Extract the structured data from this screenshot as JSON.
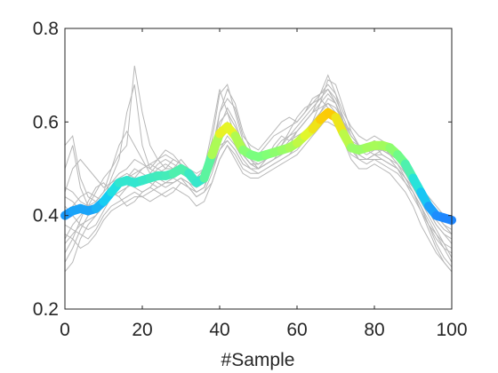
{
  "chart_data": {
    "type": "line",
    "title": "",
    "xlabel": "#Sample",
    "ylabel": "",
    "xlim": [
      0,
      100
    ],
    "ylim": [
      0.2,
      0.8
    ],
    "x_ticks": [
      0,
      20,
      40,
      60,
      80,
      100
    ],
    "y_ticks": [
      0.2,
      0.4,
      0.6,
      0.8
    ],
    "x_tick_labels": [
      "0",
      "20",
      "40",
      "60",
      "80",
      "100"
    ],
    "y_tick_labels": [
      "0.2",
      "0.4",
      "0.6",
      "0.8"
    ],
    "grid": false,
    "legend": "none",
    "colors": {
      "background_series": "#b8b8b8",
      "axes": "#262626",
      "mean_low": "#1e82ff",
      "mean_mid": "#7dff7a",
      "mean_high": "#ffc400"
    },
    "mean_series": {
      "x": [
        0,
        2,
        4,
        6,
        8,
        10,
        12,
        14,
        16,
        18,
        20,
        22,
        24,
        26,
        28,
        30,
        32,
        34,
        36,
        38,
        40,
        42,
        44,
        46,
        48,
        50,
        52,
        54,
        56,
        58,
        60,
        62,
        64,
        66,
        68,
        70,
        72,
        74,
        76,
        78,
        80,
        82,
        84,
        86,
        88,
        90,
        92,
        94,
        96,
        98,
        100
      ],
      "values": [
        0.4,
        0.41,
        0.415,
        0.41,
        0.415,
        0.43,
        0.45,
        0.47,
        0.475,
        0.47,
        0.475,
        0.48,
        0.485,
        0.485,
        0.49,
        0.5,
        0.49,
        0.47,
        0.48,
        0.53,
        0.575,
        0.59,
        0.57,
        0.54,
        0.53,
        0.525,
        0.53,
        0.535,
        0.54,
        0.545,
        0.555,
        0.57,
        0.585,
        0.605,
        0.62,
        0.61,
        0.575,
        0.545,
        0.54,
        0.545,
        0.55,
        0.55,
        0.545,
        0.53,
        0.51,
        0.48,
        0.45,
        0.42,
        0.4,
        0.395,
        0.39
      ]
    },
    "background_series": [
      {
        "values": [
          0.55,
          0.57,
          0.48,
          0.44,
          0.43,
          0.45,
          0.5,
          0.55,
          0.58,
          0.55,
          0.52,
          0.49,
          0.48,
          0.47,
          0.47,
          0.48,
          0.46,
          0.45,
          0.46,
          0.52,
          0.62,
          0.65,
          0.63,
          0.57,
          0.55,
          0.54,
          0.56,
          0.58,
          0.6,
          0.61,
          0.6,
          0.62,
          0.65,
          0.66,
          0.67,
          0.64,
          0.59,
          0.56,
          0.55,
          0.54,
          0.55,
          0.53,
          0.52,
          0.5,
          0.47,
          0.45,
          0.42,
          0.38,
          0.36,
          0.34,
          0.33
        ]
      },
      {
        "values": [
          0.5,
          0.55,
          0.46,
          0.42,
          0.41,
          0.43,
          0.48,
          0.52,
          0.62,
          0.68,
          0.55,
          0.5,
          0.49,
          0.5,
          0.52,
          0.51,
          0.49,
          0.47,
          0.48,
          0.55,
          0.6,
          0.62,
          0.59,
          0.55,
          0.52,
          0.5,
          0.52,
          0.55,
          0.57,
          0.56,
          0.58,
          0.6,
          0.62,
          0.63,
          0.64,
          0.62,
          0.6,
          0.58,
          0.55,
          0.55,
          0.56,
          0.55,
          0.53,
          0.52,
          0.49,
          0.46,
          0.43,
          0.41,
          0.38,
          0.36,
          0.34
        ]
      },
      {
        "values": [
          0.35,
          0.38,
          0.4,
          0.42,
          0.45,
          0.48,
          0.5,
          0.53,
          0.55,
          0.72,
          0.62,
          0.55,
          0.52,
          0.5,
          0.5,
          0.51,
          0.5,
          0.48,
          0.5,
          0.56,
          0.66,
          0.68,
          0.62,
          0.56,
          0.53,
          0.52,
          0.53,
          0.54,
          0.55,
          0.58,
          0.61,
          0.63,
          0.64,
          0.65,
          0.63,
          0.6,
          0.56,
          0.54,
          0.53,
          0.55,
          0.56,
          0.55,
          0.54,
          0.52,
          0.5,
          0.47,
          0.44,
          0.42,
          0.4,
          0.38,
          0.36
        ]
      },
      {
        "values": [
          0.32,
          0.35,
          0.39,
          0.43,
          0.46,
          0.47,
          0.45,
          0.44,
          0.46,
          0.48,
          0.5,
          0.51,
          0.5,
          0.49,
          0.5,
          0.52,
          0.5,
          0.48,
          0.5,
          0.58,
          0.67,
          0.62,
          0.57,
          0.53,
          0.51,
          0.5,
          0.51,
          0.52,
          0.53,
          0.55,
          0.58,
          0.6,
          0.62,
          0.66,
          0.7,
          0.66,
          0.6,
          0.55,
          0.52,
          0.52,
          0.53,
          0.54,
          0.53,
          0.51,
          0.48,
          0.46,
          0.43,
          0.4,
          0.37,
          0.34,
          0.31
        ]
      },
      {
        "values": [
          0.3,
          0.33,
          0.37,
          0.4,
          0.42,
          0.44,
          0.46,
          0.47,
          0.48,
          0.5,
          0.49,
          0.48,
          0.47,
          0.46,
          0.47,
          0.48,
          0.47,
          0.45,
          0.46,
          0.5,
          0.56,
          0.58,
          0.56,
          0.53,
          0.51,
          0.5,
          0.51,
          0.52,
          0.54,
          0.56,
          0.57,
          0.58,
          0.6,
          0.64,
          0.69,
          0.68,
          0.63,
          0.58,
          0.55,
          0.54,
          0.53,
          0.52,
          0.51,
          0.5,
          0.48,
          0.45,
          0.42,
          0.39,
          0.36,
          0.33,
          0.3
        ]
      },
      {
        "values": [
          0.28,
          0.3,
          0.35,
          0.38,
          0.4,
          0.43,
          0.45,
          0.44,
          0.42,
          0.43,
          0.45,
          0.46,
          0.45,
          0.44,
          0.45,
          0.47,
          0.46,
          0.44,
          0.45,
          0.47,
          0.52,
          0.55,
          0.53,
          0.5,
          0.49,
          0.49,
          0.5,
          0.51,
          0.52,
          0.53,
          0.54,
          0.56,
          0.58,
          0.6,
          0.62,
          0.6,
          0.56,
          0.52,
          0.5,
          0.5,
          0.51,
          0.5,
          0.49,
          0.47,
          0.45,
          0.42,
          0.38,
          0.35,
          0.32,
          0.3,
          0.28
        ]
      },
      {
        "values": [
          0.45,
          0.5,
          0.52,
          0.5,
          0.48,
          0.46,
          0.47,
          0.49,
          0.5,
          0.52,
          0.51,
          0.5,
          0.52,
          0.54,
          0.53,
          0.51,
          0.5,
          0.49,
          0.5,
          0.54,
          0.62,
          0.67,
          0.64,
          0.58,
          0.54,
          0.53,
          0.55,
          0.57,
          0.58,
          0.59,
          0.6,
          0.62,
          0.64,
          0.66,
          0.68,
          0.66,
          0.62,
          0.59,
          0.57,
          0.56,
          0.57,
          0.56,
          0.55,
          0.54,
          0.52,
          0.49,
          0.46,
          0.44,
          0.42,
          0.4,
          0.39
        ]
      },
      {
        "values": [
          0.42,
          0.4,
          0.38,
          0.37,
          0.38,
          0.41,
          0.44,
          0.46,
          0.47,
          0.46,
          0.45,
          0.46,
          0.48,
          0.49,
          0.48,
          0.47,
          0.46,
          0.44,
          0.45,
          0.49,
          0.54,
          0.57,
          0.55,
          0.52,
          0.5,
          0.5,
          0.51,
          0.52,
          0.53,
          0.54,
          0.55,
          0.57,
          0.58,
          0.6,
          0.6,
          0.59,
          0.56,
          0.53,
          0.52,
          0.52,
          0.53,
          0.53,
          0.52,
          0.51,
          0.49,
          0.47,
          0.44,
          0.41,
          0.39,
          0.37,
          0.36
        ]
      },
      {
        "values": [
          0.38,
          0.37,
          0.36,
          0.35,
          0.37,
          0.4,
          0.42,
          0.43,
          0.44,
          0.45,
          0.44,
          0.43,
          0.44,
          0.45,
          0.46,
          0.45,
          0.44,
          0.42,
          0.43,
          0.47,
          0.52,
          0.55,
          0.52,
          0.49,
          0.48,
          0.48,
          0.49,
          0.5,
          0.51,
          0.52,
          0.53,
          0.55,
          0.57,
          0.59,
          0.61,
          0.6,
          0.57,
          0.54,
          0.52,
          0.51,
          0.52,
          0.51,
          0.5,
          0.49,
          0.47,
          0.44,
          0.41,
          0.38,
          0.35,
          0.33,
          0.32
        ]
      },
      {
        "values": [
          0.36,
          0.35,
          0.33,
          0.34,
          0.36,
          0.39,
          0.41,
          0.42,
          0.43,
          0.44,
          0.44,
          0.45,
          0.46,
          0.47,
          0.47,
          0.48,
          0.47,
          0.46,
          0.47,
          0.5,
          0.55,
          0.56,
          0.54,
          0.51,
          0.5,
          0.5,
          0.51,
          0.52,
          0.53,
          0.54,
          0.55,
          0.57,
          0.59,
          0.61,
          0.63,
          0.62,
          0.58,
          0.55,
          0.53,
          0.52,
          0.53,
          0.52,
          0.51,
          0.5,
          0.48,
          0.45,
          0.42,
          0.38,
          0.34,
          0.31,
          0.29
        ]
      },
      {
        "values": [
          0.44,
          0.43,
          0.41,
          0.4,
          0.41,
          0.43,
          0.46,
          0.48,
          0.49,
          0.48,
          0.47,
          0.48,
          0.5,
          0.51,
          0.5,
          0.49,
          0.48,
          0.47,
          0.48,
          0.52,
          0.57,
          0.6,
          0.57,
          0.53,
          0.51,
          0.51,
          0.52,
          0.53,
          0.54,
          0.55,
          0.56,
          0.58,
          0.6,
          0.62,
          0.64,
          0.63,
          0.6,
          0.57,
          0.55,
          0.54,
          0.55,
          0.54,
          0.53,
          0.52,
          0.5,
          0.47,
          0.44,
          0.42,
          0.4,
          0.38,
          0.37
        ]
      },
      {
        "values": [
          0.4,
          0.42,
          0.44,
          0.45,
          0.44,
          0.43,
          0.44,
          0.46,
          0.48,
          0.49,
          0.5,
          0.51,
          0.52,
          0.53,
          0.52,
          0.51,
          0.49,
          0.47,
          0.48,
          0.53,
          0.59,
          0.63,
          0.6,
          0.55,
          0.52,
          0.51,
          0.52,
          0.54,
          0.56,
          0.57,
          0.58,
          0.6,
          0.62,
          0.64,
          0.66,
          0.64,
          0.6,
          0.56,
          0.54,
          0.53,
          0.54,
          0.54,
          0.53,
          0.52,
          0.5,
          0.47,
          0.44,
          0.41,
          0.38,
          0.36,
          0.35
        ]
      },
      {
        "values": [
          0.46,
          0.45,
          0.43,
          0.42,
          0.43,
          0.45,
          0.47,
          0.48,
          0.47,
          0.46,
          0.47,
          0.49,
          0.51,
          0.52,
          0.51,
          0.5,
          0.48,
          0.46,
          0.47,
          0.51,
          0.56,
          0.59,
          0.57,
          0.53,
          0.51,
          0.51,
          0.52,
          0.53,
          0.55,
          0.57,
          0.59,
          0.61,
          0.63,
          0.65,
          0.67,
          0.65,
          0.61,
          0.57,
          0.55,
          0.55,
          0.56,
          0.55,
          0.54,
          0.53,
          0.51,
          0.48,
          0.45,
          0.43,
          0.41,
          0.39,
          0.38
        ]
      },
      {
        "values": [
          0.34,
          0.36,
          0.38,
          0.39,
          0.4,
          0.42,
          0.44,
          0.45,
          0.46,
          0.47,
          0.48,
          0.47,
          0.46,
          0.47,
          0.48,
          0.49,
          0.48,
          0.46,
          0.47,
          0.5,
          0.54,
          0.56,
          0.54,
          0.51,
          0.5,
          0.49,
          0.5,
          0.51,
          0.52,
          0.53,
          0.55,
          0.57,
          0.59,
          0.62,
          0.65,
          0.64,
          0.6,
          0.56,
          0.53,
          0.52,
          0.52,
          0.52,
          0.51,
          0.5,
          0.48,
          0.45,
          0.41,
          0.37,
          0.33,
          0.3,
          0.28
        ]
      }
    ]
  }
}
